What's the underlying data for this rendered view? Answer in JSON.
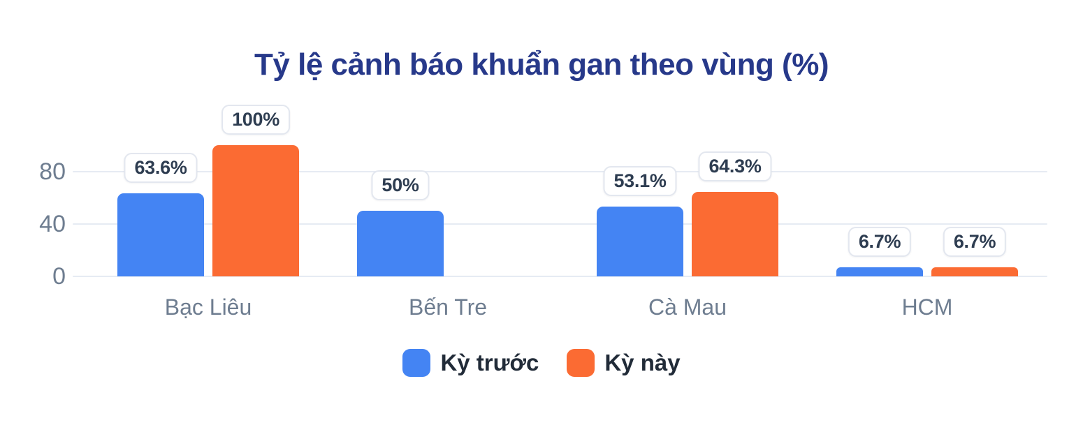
{
  "title": "Tỷ lệ cảnh báo khuẩn gan theo vùng (%)",
  "colors": {
    "title": "#27398a",
    "series_previous": "#4484f3",
    "series_current": "#fb6b33",
    "axis_text": "#6e7d90",
    "value_text": "#2e3d51",
    "gridline": "#e6ebf3",
    "value_box_border": "#e3e7ef"
  },
  "chart_data": {
    "type": "bar",
    "title": "Tỷ lệ cảnh báo khuẩn gan theo vùng (%)",
    "categories": [
      "Bạc Liêu",
      "Bến Tre",
      "Cà Mau",
      "HCM"
    ],
    "series": [
      {
        "name": "Kỳ trước",
        "key": "ky-truoc",
        "color": "#4484f3",
        "values": [
          63.6,
          50,
          53.1,
          6.7
        ],
        "labels": [
          "63.6%",
          "50%",
          "53.1%",
          "6.7%"
        ]
      },
      {
        "name": "Kỳ này",
        "key": "ky-nay",
        "color": "#fb6b33",
        "values": [
          100,
          null,
          64.3,
          6.7
        ],
        "labels": [
          "100%",
          null,
          "64.3%",
          "6.7%"
        ]
      }
    ],
    "xlabel": "",
    "ylabel": "",
    "unit": "%",
    "y_axis": {
      "ticks": [
        0,
        40,
        80
      ],
      "tick_labels": [
        "0",
        "40",
        "80"
      ],
      "ylim": [
        0,
        100
      ]
    },
    "grid": true,
    "legend_position": "bottom"
  },
  "legend": {
    "items": [
      {
        "label": "Kỳ trước",
        "key": "ky-truoc",
        "color": "#4484f3"
      },
      {
        "label": "Kỳ này",
        "key": "ky-nay",
        "color": "#fb6b33"
      }
    ]
  }
}
